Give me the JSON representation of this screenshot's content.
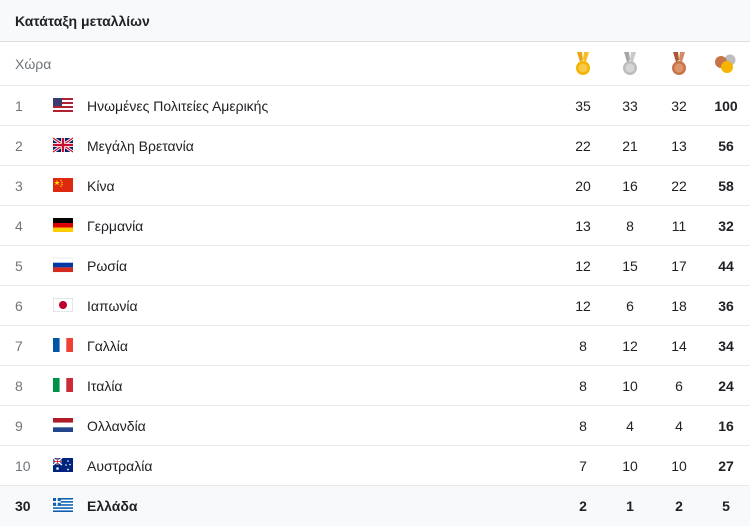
{
  "title": "Κατάταξη μεταλλίων",
  "header": {
    "country_label": "Χώρα",
    "gold_icon": "gold-medal-icon",
    "silver_icon": "silver-medal-icon",
    "bronze_icon": "bronze-medal-icon",
    "total_icon": "total-medals-icon"
  },
  "colors": {
    "gold": "#f4b400",
    "silver": "#bdbdbd",
    "bronze": "#c8744a"
  },
  "rows": [
    {
      "rank": "1",
      "flag": "usa-flag",
      "country": "Ηνωμένες Πολιτείες Αμερικής",
      "gold": "35",
      "silver": "33",
      "bronze": "32",
      "total": "100"
    },
    {
      "rank": "2",
      "flag": "uk-flag",
      "country": "Μεγάλη Βρετανία",
      "gold": "22",
      "silver": "21",
      "bronze": "13",
      "total": "56"
    },
    {
      "rank": "3",
      "flag": "china-flag",
      "country": "Κίνα",
      "gold": "20",
      "silver": "16",
      "bronze": "22",
      "total": "58"
    },
    {
      "rank": "4",
      "flag": "germany-flag",
      "country": "Γερμανία",
      "gold": "13",
      "silver": "8",
      "bronze": "11",
      "total": "32"
    },
    {
      "rank": "5",
      "flag": "russia-flag",
      "country": "Ρωσία",
      "gold": "12",
      "silver": "15",
      "bronze": "17",
      "total": "44"
    },
    {
      "rank": "6",
      "flag": "japan-flag",
      "country": "Ιαπωνία",
      "gold": "12",
      "silver": "6",
      "bronze": "18",
      "total": "36"
    },
    {
      "rank": "7",
      "flag": "france-flag",
      "country": "Γαλλία",
      "gold": "8",
      "silver": "12",
      "bronze": "14",
      "total": "34"
    },
    {
      "rank": "8",
      "flag": "italy-flag",
      "country": "Ιταλία",
      "gold": "8",
      "silver": "10",
      "bronze": "6",
      "total": "24"
    },
    {
      "rank": "9",
      "flag": "netherlands-flag",
      "country": "Ολλανδία",
      "gold": "8",
      "silver": "4",
      "bronze": "4",
      "total": "16"
    },
    {
      "rank": "10",
      "flag": "australia-flag",
      "country": "Αυστραλία",
      "gold": "7",
      "silver": "10",
      "bronze": "10",
      "total": "27"
    },
    {
      "rank": "30",
      "flag": "greece-flag",
      "country": "Ελλάδα",
      "gold": "2",
      "silver": "1",
      "bronze": "2",
      "total": "5",
      "highlighted": true
    }
  ]
}
